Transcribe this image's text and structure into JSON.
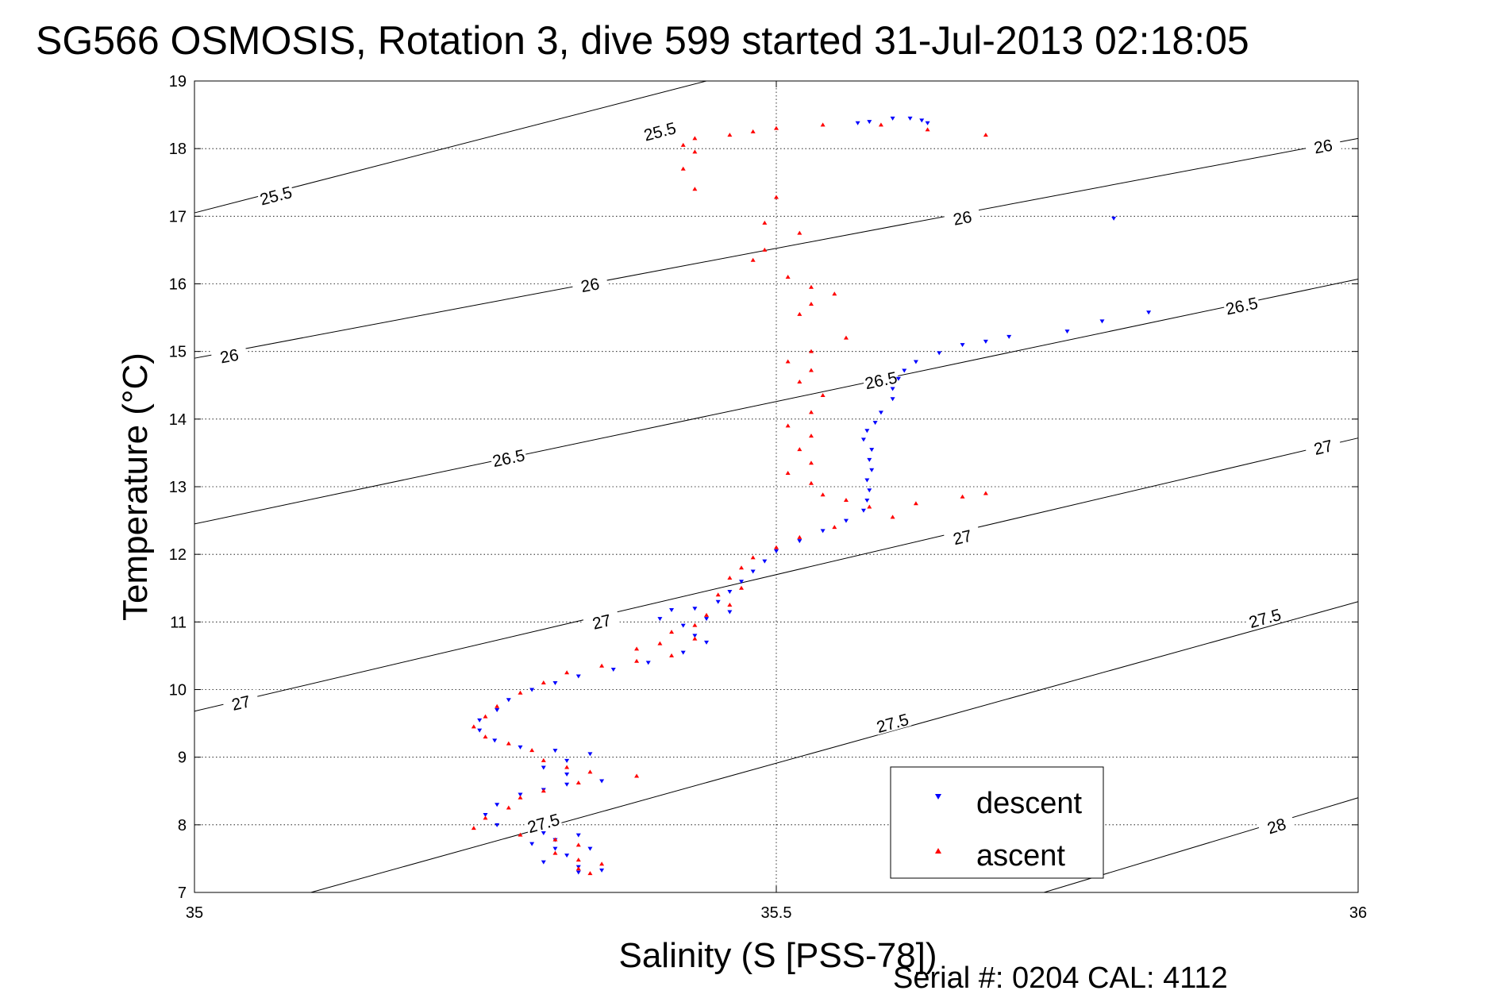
{
  "chart_data": {
    "type": "scatter",
    "title": "SG566 OSMOSIS, Rotation 3, dive 599 started 31-Jul-2013 02:18:05",
    "xlabel": "Salinity (S [PSS-78])",
    "ylabel": "Temperature (°C)",
    "xlim": [
      35,
      36
    ],
    "ylim": [
      7,
      19
    ],
    "x_ticks": [
      "35",
      "35.5",
      "36"
    ],
    "y_ticks": [
      "7",
      "8",
      "9",
      "10",
      "11",
      "12",
      "13",
      "14",
      "15",
      "16",
      "17",
      "18",
      "19"
    ],
    "grid": "dotted",
    "legend_position": "bottom-right",
    "density_contours": [
      {
        "sigma": 25.5,
        "label": "25.5",
        "line": [
          [
            35.0,
            17.05
          ],
          [
            35.44,
            19.0
          ]
        ],
        "label_at": [
          [
            35.07,
            17.3
          ],
          [
            35.4,
            18.25
          ]
        ]
      },
      {
        "sigma": 26.0,
        "label": "26",
        "line": [
          [
            35.0,
            14.9
          ],
          [
            36.0,
            18.15
          ]
        ],
        "label_at": [
          [
            35.03,
            14.93
          ],
          [
            35.34,
            15.98
          ],
          [
            35.66,
            16.97
          ],
          [
            35.97,
            18.03
          ]
        ]
      },
      {
        "sigma": 26.5,
        "label": "26.5",
        "line": [
          [
            35.0,
            12.45
          ],
          [
            36.0,
            16.07
          ]
        ],
        "label_at": [
          [
            35.27,
            13.42
          ],
          [
            35.59,
            14.57
          ],
          [
            35.9,
            15.67
          ]
        ]
      },
      {
        "sigma": 27.0,
        "label": "27",
        "line": [
          [
            35.0,
            9.68
          ],
          [
            36.0,
            13.72
          ]
        ],
        "label_at": [
          [
            35.04,
            9.8
          ],
          [
            35.35,
            11.0
          ],
          [
            35.66,
            12.25
          ],
          [
            35.97,
            13.58
          ]
        ]
      },
      {
        "sigma": 27.5,
        "label": "27.5",
        "line": [
          [
            35.1,
            7.0
          ],
          [
            36.0,
            11.3
          ]
        ],
        "label_at": [
          [
            35.3,
            8.02
          ],
          [
            35.6,
            9.5
          ],
          [
            35.92,
            11.05
          ]
        ]
      },
      {
        "sigma": 28.0,
        "label": "28",
        "line": [
          [
            35.73,
            7.0
          ],
          [
            36.0,
            8.4
          ]
        ],
        "label_at": [
          [
            35.93,
            7.98
          ]
        ]
      }
    ],
    "series": [
      {
        "name": "descent",
        "color": "#0000ff",
        "marker": "triangle-down",
        "points": [
          [
            35.6,
            18.45
          ],
          [
            35.615,
            18.45
          ],
          [
            35.625,
            18.42
          ],
          [
            35.63,
            18.38
          ],
          [
            35.58,
            18.4
          ],
          [
            35.57,
            18.38
          ],
          [
            35.79,
            16.97
          ],
          [
            35.82,
            15.58
          ],
          [
            35.78,
            15.45
          ],
          [
            35.75,
            15.3
          ],
          [
            35.7,
            15.22
          ],
          [
            35.68,
            15.15
          ],
          [
            35.66,
            15.1
          ],
          [
            35.64,
            14.98
          ],
          [
            35.62,
            14.85
          ],
          [
            35.61,
            14.72
          ],
          [
            35.605,
            14.6
          ],
          [
            35.6,
            14.45
          ],
          [
            35.6,
            14.3
          ],
          [
            35.59,
            14.1
          ],
          [
            35.585,
            13.95
          ],
          [
            35.578,
            13.83
          ],
          [
            35.575,
            13.7
          ],
          [
            35.582,
            13.55
          ],
          [
            35.58,
            13.4
          ],
          [
            35.582,
            13.25
          ],
          [
            35.578,
            13.1
          ],
          [
            35.58,
            12.95
          ],
          [
            35.578,
            12.8
          ],
          [
            35.575,
            12.65
          ],
          [
            35.56,
            12.5
          ],
          [
            35.54,
            12.35
          ],
          [
            35.52,
            12.2
          ],
          [
            35.5,
            12.05
          ],
          [
            35.49,
            11.9
          ],
          [
            35.48,
            11.75
          ],
          [
            35.47,
            11.6
          ],
          [
            35.46,
            11.45
          ],
          [
            35.45,
            11.3
          ],
          [
            35.46,
            11.15
          ],
          [
            35.44,
            11.05
          ],
          [
            35.43,
            11.2
          ],
          [
            35.41,
            11.18
          ],
          [
            35.4,
            11.05
          ],
          [
            35.42,
            10.95
          ],
          [
            35.43,
            10.8
          ],
          [
            35.44,
            10.7
          ],
          [
            35.42,
            10.55
          ],
          [
            35.39,
            10.4
          ],
          [
            35.36,
            10.3
          ],
          [
            35.33,
            10.2
          ],
          [
            35.31,
            10.1
          ],
          [
            35.29,
            10.0
          ],
          [
            35.27,
            9.85
          ],
          [
            35.26,
            9.7
          ],
          [
            35.245,
            9.55
          ],
          [
            35.245,
            9.4
          ],
          [
            35.258,
            9.25
          ],
          [
            35.28,
            9.15
          ],
          [
            35.31,
            9.1
          ],
          [
            35.34,
            9.05
          ],
          [
            35.32,
            8.95
          ],
          [
            35.3,
            8.85
          ],
          [
            35.32,
            8.75
          ],
          [
            35.35,
            8.65
          ],
          [
            35.32,
            8.6
          ],
          [
            35.3,
            8.52
          ],
          [
            35.28,
            8.45
          ],
          [
            35.26,
            8.3
          ],
          [
            35.25,
            8.15
          ],
          [
            35.26,
            8.0
          ],
          [
            35.3,
            7.88
          ],
          [
            35.33,
            7.85
          ],
          [
            35.31,
            7.78
          ],
          [
            35.29,
            7.72
          ],
          [
            35.31,
            7.65
          ],
          [
            35.34,
            7.65
          ],
          [
            35.32,
            7.55
          ],
          [
            35.3,
            7.45
          ],
          [
            35.33,
            7.38
          ],
          [
            35.35,
            7.33
          ],
          [
            35.33,
            7.3
          ]
        ]
      },
      {
        "name": "ascent",
        "color": "#ff0000",
        "marker": "triangle-up",
        "points": [
          [
            35.68,
            18.2
          ],
          [
            35.63,
            18.28
          ],
          [
            35.59,
            18.35
          ],
          [
            35.54,
            18.35
          ],
          [
            35.5,
            18.3
          ],
          [
            35.48,
            18.25
          ],
          [
            35.46,
            18.2
          ],
          [
            35.43,
            18.15
          ],
          [
            35.42,
            18.05
          ],
          [
            35.43,
            17.95
          ],
          [
            35.42,
            17.7
          ],
          [
            35.43,
            17.4
          ],
          [
            35.5,
            17.28
          ],
          [
            35.49,
            16.9
          ],
          [
            35.52,
            16.75
          ],
          [
            35.49,
            16.5
          ],
          [
            35.48,
            16.35
          ],
          [
            35.51,
            16.1
          ],
          [
            35.53,
            15.95
          ],
          [
            35.55,
            15.85
          ],
          [
            35.53,
            15.7
          ],
          [
            35.52,
            15.55
          ],
          [
            35.56,
            15.2
          ],
          [
            35.53,
            15.0
          ],
          [
            35.51,
            14.85
          ],
          [
            35.53,
            14.72
          ],
          [
            35.52,
            14.55
          ],
          [
            35.54,
            14.35
          ],
          [
            35.53,
            14.1
          ],
          [
            35.51,
            13.9
          ],
          [
            35.53,
            13.75
          ],
          [
            35.52,
            13.55
          ],
          [
            35.53,
            13.35
          ],
          [
            35.51,
            13.2
          ],
          [
            35.53,
            13.05
          ],
          [
            35.54,
            12.88
          ],
          [
            35.56,
            12.8
          ],
          [
            35.58,
            12.7
          ],
          [
            35.62,
            12.75
          ],
          [
            35.66,
            12.85
          ],
          [
            35.68,
            12.9
          ],
          [
            35.6,
            12.55
          ],
          [
            35.55,
            12.4
          ],
          [
            35.52,
            12.25
          ],
          [
            35.5,
            12.1
          ],
          [
            35.48,
            11.95
          ],
          [
            35.47,
            11.8
          ],
          [
            35.46,
            11.65
          ],
          [
            35.47,
            11.5
          ],
          [
            35.45,
            11.4
          ],
          [
            35.46,
            11.25
          ],
          [
            35.44,
            11.1
          ],
          [
            35.43,
            10.95
          ],
          [
            35.41,
            10.85
          ],
          [
            35.43,
            10.75
          ],
          [
            35.4,
            10.68
          ],
          [
            35.38,
            10.6
          ],
          [
            35.41,
            10.5
          ],
          [
            35.38,
            10.42
          ],
          [
            35.35,
            10.35
          ],
          [
            35.32,
            10.25
          ],
          [
            35.3,
            10.1
          ],
          [
            35.28,
            9.95
          ],
          [
            35.26,
            9.75
          ],
          [
            35.25,
            9.6
          ],
          [
            35.24,
            9.45
          ],
          [
            35.25,
            9.3
          ],
          [
            35.27,
            9.2
          ],
          [
            35.29,
            9.1
          ],
          [
            35.3,
            8.95
          ],
          [
            35.32,
            8.85
          ],
          [
            35.34,
            8.78
          ],
          [
            35.38,
            8.72
          ],
          [
            35.33,
            8.62
          ],
          [
            35.3,
            8.5
          ],
          [
            35.28,
            8.4
          ],
          [
            35.27,
            8.25
          ],
          [
            35.25,
            8.1
          ],
          [
            35.24,
            7.95
          ],
          [
            35.28,
            7.85
          ],
          [
            35.31,
            7.78
          ],
          [
            35.33,
            7.7
          ],
          [
            35.31,
            7.58
          ],
          [
            35.33,
            7.48
          ],
          [
            35.35,
            7.42
          ],
          [
            35.33,
            7.35
          ],
          [
            35.34,
            7.28
          ]
        ]
      }
    ]
  },
  "legend": {
    "items": [
      {
        "label": "descent",
        "color": "#0000ff",
        "marker": "triangle-down"
      },
      {
        "label": "ascent",
        "color": "#ff0000",
        "marker": "triangle-up"
      }
    ]
  },
  "footer": {
    "serial": "Serial #: 0204  CAL: 4112"
  }
}
